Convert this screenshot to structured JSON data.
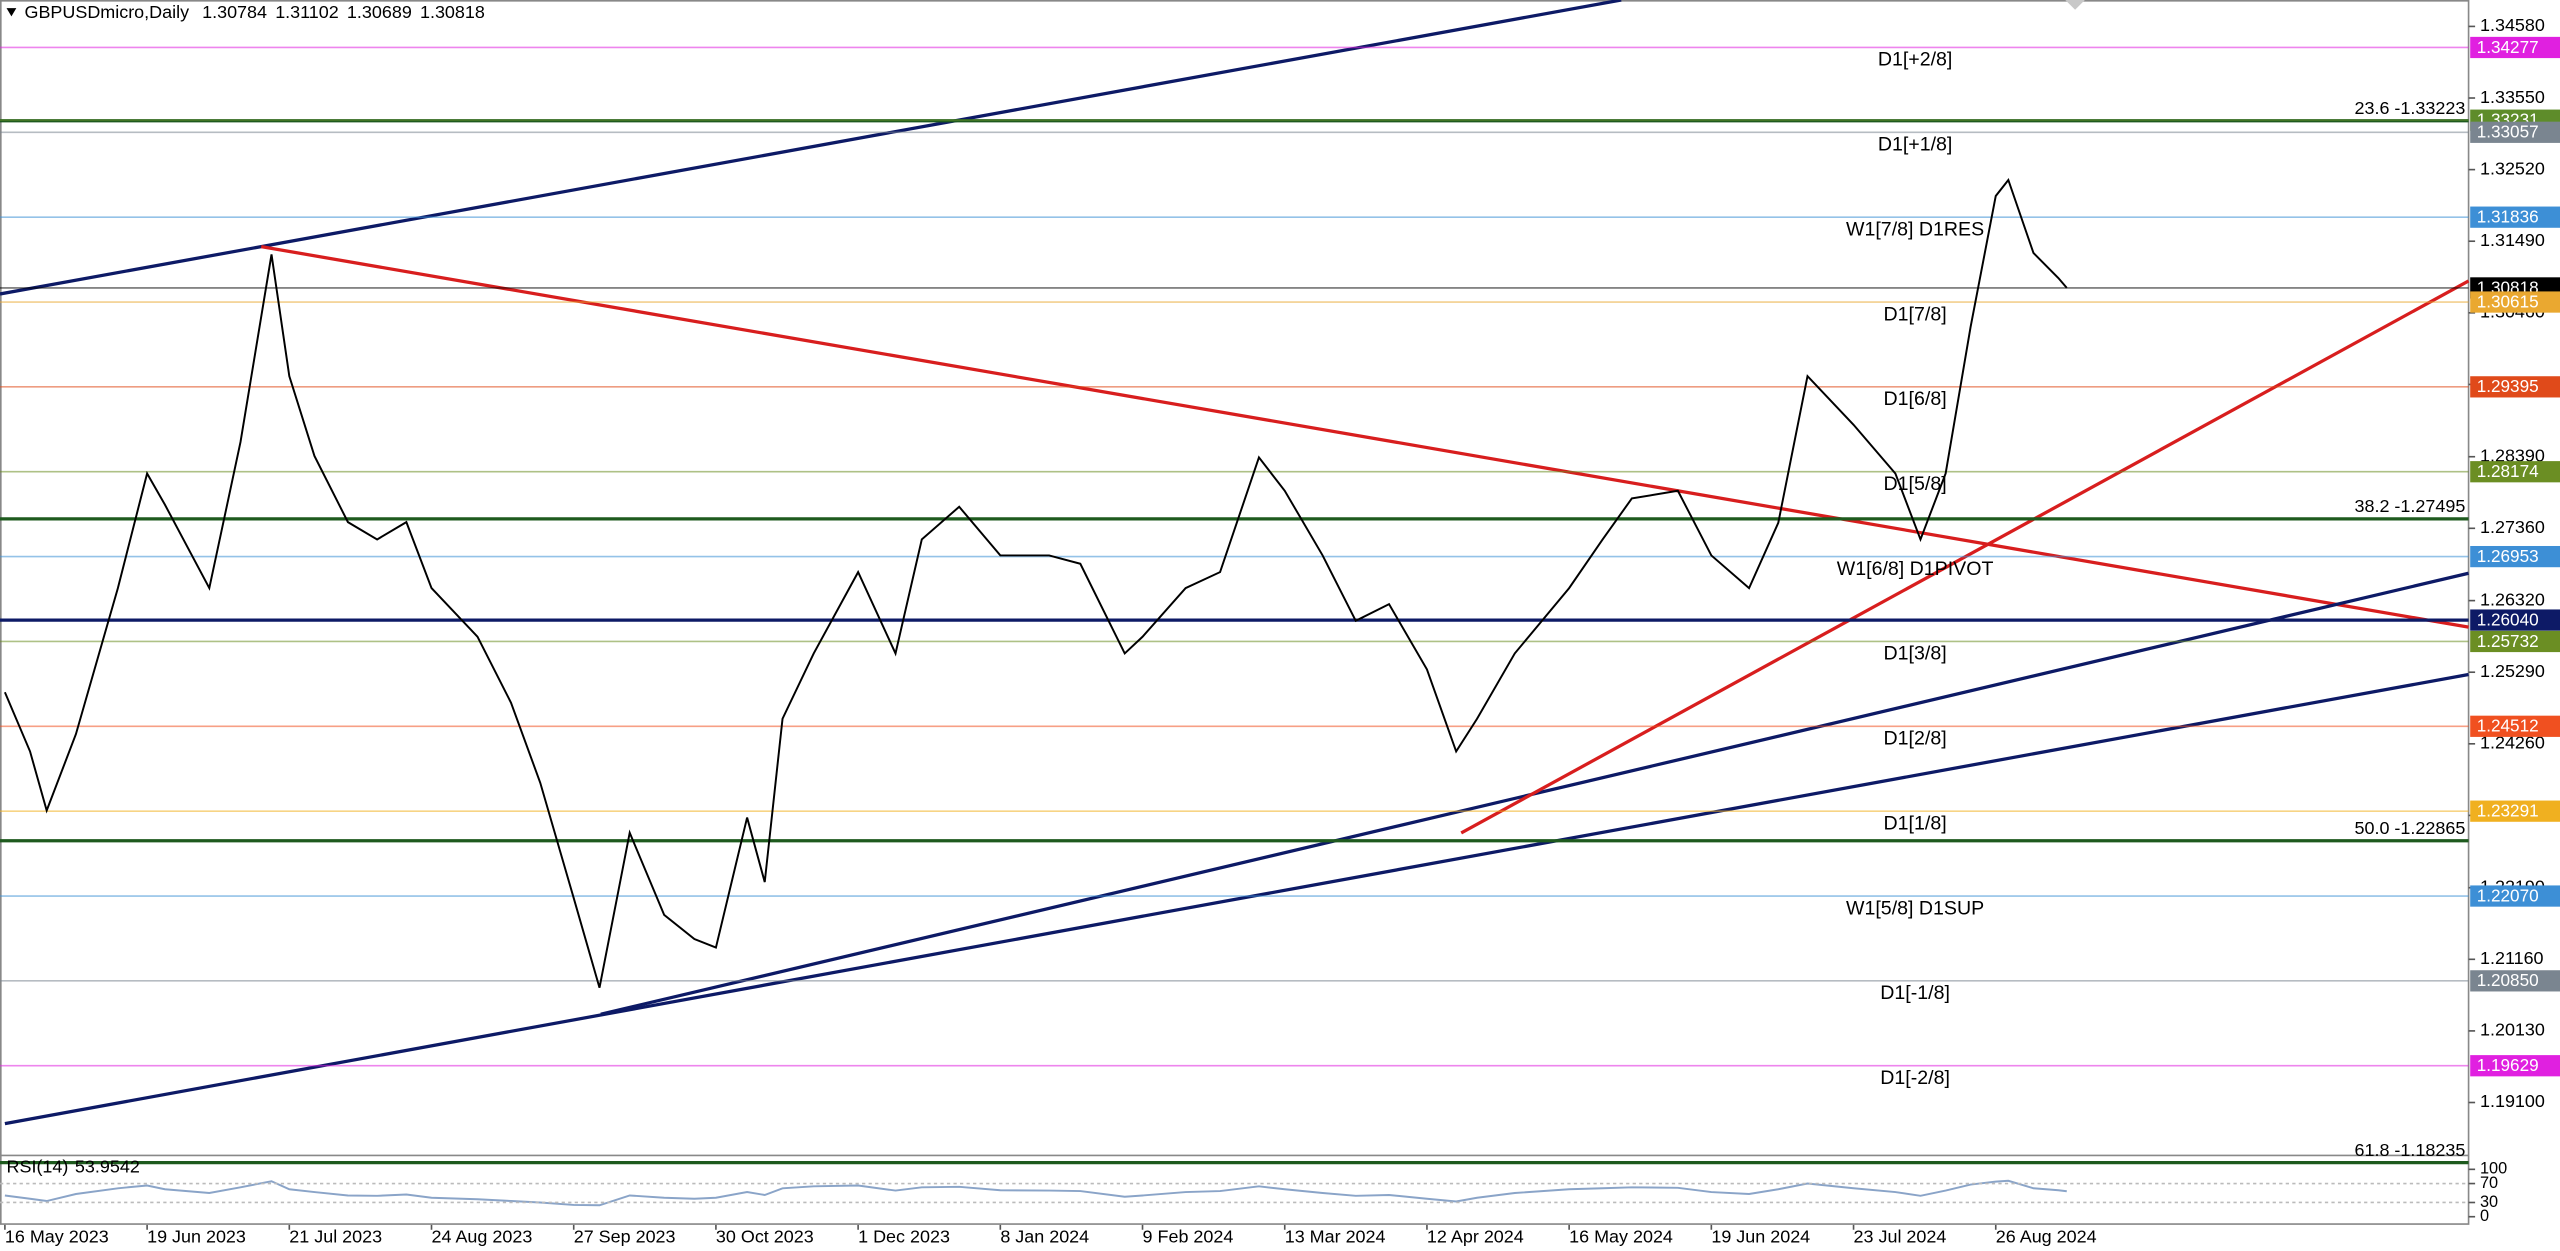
{
  "chart_data": {
    "type": "line",
    "title": "GBPUSDmicro,Daily",
    "ohlc": [
      1.30784,
      1.31102,
      1.30689,
      1.30818
    ],
    "xticks": [
      "16 May 2023",
      "19 Jun 2023",
      "21 Jul 2023",
      "24 Aug 2023",
      "27 Sep 2023",
      "30 Oct 2023",
      "1 Dec 2023",
      "8 Jan 2024",
      "9 Feb 2024",
      "13 Mar 2024",
      "12 Apr 2024",
      "16 May 2024",
      "19 Jun 2024",
      "23 Jul 2024",
      "26 Aug 2024"
    ],
    "x": [
      "16 May 2023",
      "22 May 2023",
      "26 May 2023",
      "2 Jun 2023",
      "12 Jun 2023",
      "19 Jun 2023",
      "23 Jun 2023",
      "3 Jul 2023",
      "10 Jul 2023",
      "17 Jul 2023",
      "21 Jul 2023",
      "27 Jul 2023",
      "4 Aug 2023",
      "11 Aug 2023",
      "18 Aug 2023",
      "24 Aug 2023",
      "4 Sep 2023",
      "12 Sep 2023",
      "19 Sep 2023",
      "27 Sep 2023",
      "3 Oct 2023",
      "10 Oct 2023",
      "18 Oct 2023",
      "25 Oct 2023",
      "30 Oct 2023",
      "6 Nov 2023",
      "10 Nov 2023",
      "14 Nov 2023",
      "21 Nov 2023",
      "1 Dec 2023",
      "11 Dec 2023",
      "18 Dec 2023",
      "28 Dec 2023",
      "8 Jan 2024",
      "19 Jan 2024",
      "26 Jan 2024",
      "5 Feb 2024",
      "9 Feb 2024",
      "19 Feb 2024",
      "27 Feb 2024",
      "7 Mar 2024",
      "13 Mar 2024",
      "21 Mar 2024",
      "28 Mar 2024",
      "4 Apr 2024",
      "12 Apr 2024",
      "19 Apr 2024",
      "24 Apr 2024",
      "3 May 2024",
      "16 May 2024",
      "24 May 2024",
      "31 May 2024",
      "11 Jun 2024",
      "19 Jun 2024",
      "28 Jun 2024",
      "5 Jul 2024",
      "12 Jul 2024",
      "23 Jul 2024",
      "2 Aug 2024",
      "8 Aug 2024",
      "14 Aug 2024",
      "20 Aug 2024",
      "26 Aug 2024",
      "29 Aug 2024",
      "4 Sep 2024",
      "10 Sep 2024",
      "12 Sep 2024"
    ],
    "series": [
      {
        "color": "#000000",
        "values": [
          1.25,
          1.2415,
          1.233,
          1.244,
          1.265,
          1.2815,
          1.277,
          1.265,
          1.286,
          1.313,
          1.2955,
          1.284,
          1.2745,
          1.272,
          1.2745,
          1.265,
          1.258,
          1.2485,
          1.237,
          1.2204,
          1.2075,
          1.2298,
          1.218,
          1.2145,
          1.2133,
          1.232,
          1.2227,
          1.2462,
          1.2556,
          1.2673,
          1.2556,
          1.272,
          1.2767,
          1.2697,
          1.2697,
          1.2685,
          1.2556,
          1.258,
          1.265,
          1.2673,
          1.2838,
          1.279,
          1.2697,
          1.2603,
          1.2627,
          1.2533,
          1.2415,
          1.2462,
          1.2556,
          1.265,
          1.272,
          1.2779,
          1.279,
          1.2697,
          1.265,
          1.2744,
          1.2955,
          1.2885,
          1.2815,
          1.272,
          1.2815,
          1.3026,
          1.3214,
          1.3237,
          1.3132,
          1.3096,
          1.30818
        ]
      },
      {
        "name": "RSI(14)",
        "axis": "y2",
        "color": "#8aa4c8",
        "values": [
          45,
          38,
          33,
          48,
          60,
          66,
          58,
          50,
          62,
          75,
          58,
          52,
          45,
          44,
          47,
          40,
          37,
          33,
          30,
          25,
          24,
          45,
          40,
          38,
          40,
          52,
          46,
          60,
          64,
          66,
          55,
          62,
          63,
          56,
          55,
          54,
          42,
          45,
          52,
          54,
          64,
          58,
          50,
          44,
          46,
          38,
          32,
          40,
          50,
          58,
          60,
          62,
          61,
          52,
          48,
          58,
          70,
          60,
          52,
          44,
          55,
          68,
          74,
          76,
          60,
          56,
          53.9542
        ]
      }
    ],
    "ylim": [
      1.1835,
      1.3496
    ],
    "yticks": [
      {
        "value": 1.3458,
        "label": "1.34580"
      },
      {
        "value": 1.3355,
        "label": "1.33550"
      },
      {
        "value": 1.3252,
        "label": "1.32520"
      },
      {
        "value": 1.3149,
        "label": "1.31490"
      },
      {
        "value": 1.3046,
        "label": "1.30460"
      },
      {
        "value": 1.2943,
        "label": "1.29430"
      },
      {
        "value": 1.2839,
        "label": "1.28390"
      },
      {
        "value": 1.2736,
        "label": "1.27360"
      },
      {
        "value": 1.2632,
        "label": "1.26320"
      },
      {
        "value": 1.2529,
        "label": "1.25290"
      },
      {
        "value": 1.2426,
        "label": "1.24260"
      },
      {
        "value": 1.2323,
        "label": "1.23230"
      },
      {
        "value": 1.2219,
        "label": "1.22190"
      },
      {
        "value": 1.2116,
        "label": "1.21160"
      },
      {
        "value": 1.2013,
        "label": "1.20130"
      },
      {
        "value": 1.191,
        "label": "1.19100"
      }
    ],
    "y2lim": [
      0,
      100
    ],
    "y2ticks": [
      0,
      30,
      70,
      100
    ],
    "levels": [
      {
        "name": "D1[+2/8]",
        "value": 1.34277,
        "color": "#e020e0",
        "box": true
      },
      {
        "name": "23.6 -1.33223",
        "value": 1.33223,
        "color": "#1e5a1e",
        "box": false,
        "bold": true
      },
      {
        "value": 1.33231,
        "color": "#5e8c2a",
        "box": true
      },
      {
        "name": "D1[+1/8]",
        "value": 1.33057,
        "color": "#7a8590",
        "box": true
      },
      {
        "name": "W1[7/8] D1RES",
        "value": 1.31836,
        "color": "#3d8fd6",
        "box": true
      },
      {
        "value": 1.30818,
        "color": "#000000",
        "box": true
      },
      {
        "name": "D1[7/8]",
        "value": 1.30615,
        "color": "#eaa830",
        "box": true
      },
      {
        "name": "D1[6/8]",
        "value": 1.29395,
        "color": "#e04a1a",
        "box": true
      },
      {
        "name": "D1[5/8]",
        "value": 1.28174,
        "color": "#6b8e23",
        "box": true
      },
      {
        "name": "38.2 -1.27495",
        "value": 1.27495,
        "color": "#1e5a1e",
        "box": false,
        "bold": true
      },
      {
        "name": "W1[6/8] D1PIVOT",
        "value": 1.26953,
        "color": "#3d8fd6",
        "box": true
      },
      {
        "value": 1.2604,
        "value_label": "1.26040",
        "color": "#0d1a66",
        "box": true,
        "bold": true
      },
      {
        "name": "D1[3/8]",
        "value": 1.25732,
        "color": "#6b8e23",
        "box": true
      },
      {
        "name": "D1[2/8]",
        "value": 1.24512,
        "color": "#f05020",
        "box": true
      },
      {
        "name": "D1[1/8]",
        "value": 1.23291,
        "color": "#f0b020",
        "box": true
      },
      {
        "name": "50.0 -1.22865",
        "value": 1.22865,
        "color": "#1e5a1e",
        "box": false,
        "bold": true
      },
      {
        "name": "W1[5/8] D1SUP",
        "value": 1.2207,
        "value_label": "1.22070",
        "color": "#3d8fd6",
        "box": true
      },
      {
        "name": "D1[-1/8]",
        "value": 1.2085,
        "value_label": "1.20850",
        "color": "#7a8590",
        "box": true
      },
      {
        "name": "D1[-2/8]",
        "value": 1.19629,
        "color": "#e020e0",
        "box": true
      },
      {
        "name": "61.8 -1.18235",
        "value": 1.18235,
        "color": "#1e5a1e",
        "box": false,
        "bold": true
      }
    ]
  }
}
